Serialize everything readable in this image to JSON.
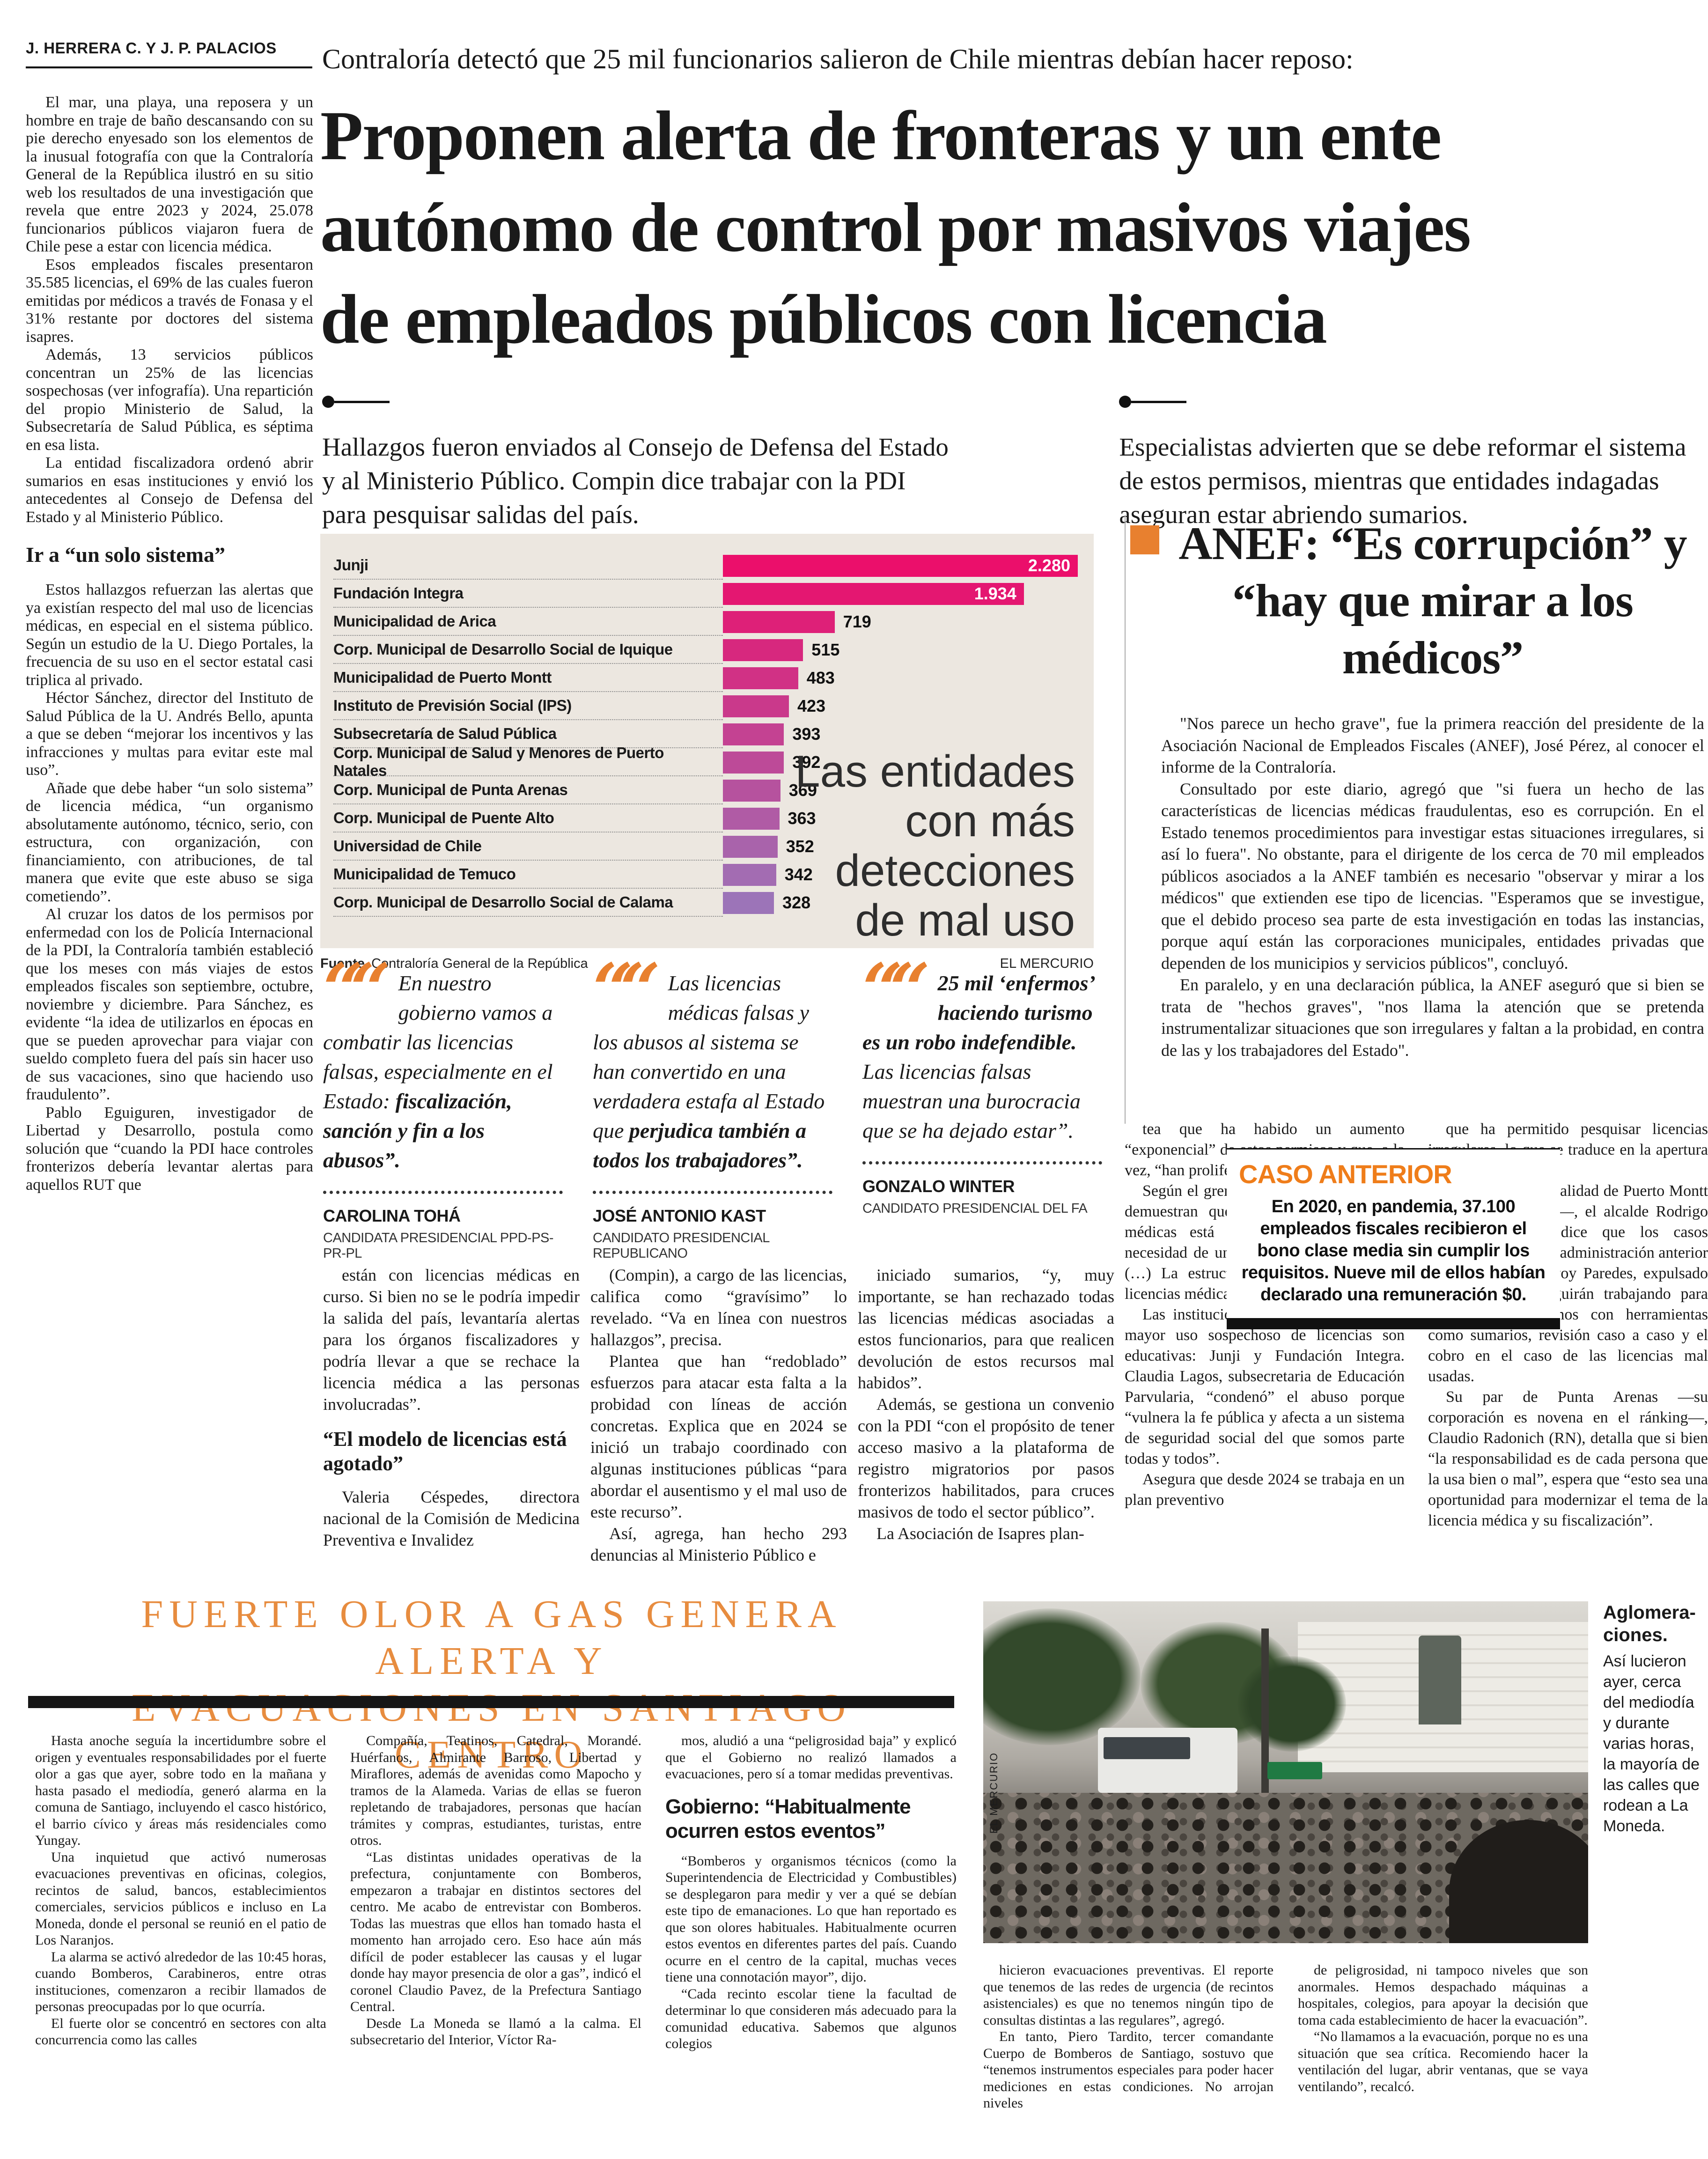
{
  "colors": {
    "accent_orange": "#E8802F",
    "title_orange": "#E78C3F",
    "caso_orange": "#EF7D1A",
    "chart_bg": "#ECE7E0",
    "bar_start": "#EB0F6B",
    "bar_end": "#9C74B8",
    "ink": "#1A1A1A"
  },
  "byline": "J. HERRERA C. Y J. P. PALACIOS",
  "kicker": "Contraloría detectó que 25 mil funcionarios salieron de Chile mientras debían hacer reposo:",
  "headline": "Proponen alerta de fronteras y un ente\nautónomo de control por masivos viajes\nde empleados públicos con licencia",
  "decks": [
    "Hallazgos fueron enviados al Consejo de Defensa del Estado y al Ministerio Público. Compin dice trabajar con la PDI para pesquisar salidas del país.",
    "Especialistas advierten que se debe reformar el sistema de estos permisos, mientras que entidades indagadas aseguran estar abriendo sumarios."
  ],
  "left_col": {
    "paragraphs": [
      "El mar, una playa, una reposera y un hombre en traje de baño descansando con su pie derecho enyesado son los elementos de la inusual fotografía con que la Contraloría General de la República ilustró en su sitio web los resultados de una investigación que revela que entre 2023 y 2024, 25.078 funcionarios públicos viajaron fuera de Chile pese a estar con licencia médica.",
      "Esos empleados fiscales presentaron 35.585 licencias, el 69% de las cuales fueron emitidas por médicos a través de Fonasa y el 31% restante por doctores del sistema isapres.",
      "Además, 13 servicios públicos concentran un 25% de las licencias sospechosas (ver infografía). Una repartición del propio Ministerio de Salud, la Subsecretaría de Salud Pública, es séptima en esa lista.",
      "La entidad fiscalizadora ordenó abrir sumarios en esas instituciones y envió los antecedentes al Consejo de Defensa del Estado y al Ministerio Público."
    ],
    "subhead": "Ir a “un solo sistema”",
    "paragraphs2": [
      "Estos hallazgos refuerzan las alertas que ya existían respecto del mal uso de licencias médicas, en especial en el sistema público. Según un estudio de la U. Diego Portales, la frecuencia de su uso en el sector estatal casi triplica al privado.",
      "Héctor Sánchez, director del Instituto de Salud Pública de la U. Andrés Bello, apunta a que se deben “mejorar los incentivos y las infracciones y multas para evitar este mal uso”.",
      "Añade que debe haber “un solo sistema” de licencia médica, “un organismo absolutamente autónomo, técnico, serio, con estructura, con organización, con financiamiento, con atribuciones, de tal manera que evite que este abuso se siga cometiendo”.",
      "Al cruzar los datos de los permisos por enfermedad con los de Policía Internacional de la PDI, la Contraloría también estableció que los meses con más viajes de estos empleados fiscales son septiembre, octubre, noviembre y diciembre. Para Sánchez, es evidente “la idea de utilizarlos en épocas en que se pueden aprovechar para viajar con sueldo completo fuera del país sin hacer uso de sus vacaciones, sino que haciendo uso fraudulento”.",
      "Pablo Eguiguren, investigador de Libertad y Desarrollo, postula como solución que “cuando la PDI hace controles fronterizos debería levantar alertas para aquellos RUT que"
    ]
  },
  "chart_data": {
    "type": "bar",
    "orientation": "horizontal",
    "title": "Las entidades\ncon más\ndetecciones\nde mal uso",
    "categories": [
      "Junji",
      "Fundación Integra",
      "Municipalidad de Arica",
      "Corp. Municipal de Desarrollo Social de Iquique",
      "Municipalidad de Puerto Montt",
      "Instituto de Previsión Social (IPS)",
      "Subsecretaría de Salud Pública",
      "Corp. Municipal de Salud y Menores de Puerto Natales",
      "Corp. Municipal de Punta Arenas",
      "Corp. Municipal de Puente Alto",
      "Universidad de Chile",
      "Municipalidad de Temuco",
      "Corp. Municipal de Desarrollo Social de Calama"
    ],
    "values": [
      2280,
      1934,
      719,
      515,
      483,
      423,
      393,
      392,
      369,
      363,
      352,
      342,
      328
    ],
    "value_labels": [
      "2.280",
      "1.934",
      "719",
      "515",
      "483",
      "423",
      "393",
      "392",
      "369",
      "363",
      "352",
      "342",
      "328"
    ],
    "xlim": [
      0,
      2280
    ],
    "grid": false,
    "source_label": "Fuente",
    "source": "Contraloría General de la República",
    "credit": "EL MERCURIO"
  },
  "anef": {
    "headline": "ANEF: “Es corrupción” y\n“hay que mirar a los médicos”",
    "paragraphs": [
      "\"Nos parece un hecho grave\", fue la primera reacción del presidente de la Asociación Nacional de Empleados Fiscales (ANEF), José Pérez, al conocer el informe de la Contraloría.",
      "Consultado por este diario, agregó que \"si fuera un hecho de las características de licencias médicas fraudulentas, eso es corrupción. En el Estado tenemos procedimientos para investigar estas situaciones irregulares, si así lo fuera\". No obstante, para el dirigente de los cerca de 70 mil empleados públicos asociados a la ANEF también es necesario \"observar y mirar a los médicos\" que extienden ese tipo de licencias. \"Esperamos que se investigue, que el debido proceso sea parte de esta investigación en todas las instancias, porque aquí están las corporaciones municipales, entidades privadas que dependen de los municipios y servicios públicos\", concluyó.",
      "En paralelo, y en una declaración pública, la ANEF aseguró que si bien se trata de \"hechos graves\", \"nos llama la atención que se pretenda instrumentalizar situaciones que son irregulares y faltan a la probidad, en contra de las y los trabajadores del Estado\"."
    ]
  },
  "quotes": [
    {
      "pre": "En nuestro gobierno vamos a combatir las licencias falsas, especialmente en el Estado: ",
      "bold": "fiscalización, sanción y fin a los abusos”.",
      "post": "",
      "name": "CAROLINA TOHÁ",
      "role": "CANDIDATA PRESIDENCIAL PPD-PS-PR-PL"
    },
    {
      "pre": "Las licencias médicas falsas y los abusos al sistema se han convertido en una verdadera estafa al Estado que ",
      "bold": "perjudica también a todos los trabajadores”.",
      "post": "",
      "name": "JOSÉ ANTONIO KAST",
      "role": "CANDIDATO PRESIDENCIAL REPUBLICANO"
    },
    {
      "pre": "",
      "bold": "25 mil ‘enfermos’ haciendo turismo es un robo indefendible.",
      "post": " Las licencias falsas muestran una burocracia que se ha dejado estar”.",
      "name": "GONZALO WINTER",
      "role": "CANDIDATO PRESIDENCIAL DEL FA"
    }
  ],
  "mid_cols": {
    "col1_p1": "están con licencias médicas en curso. Si bien no se le podría impedir la salida del país, levantaría alertas para los órganos fiscalizadores y podría llevar a que se rechace la licencia médica a las personas involucradas”.",
    "col1_subhead": "“El modelo de licencias está agotado”",
    "col1_p2": "Valeria Céspedes, directora nacional de la Comisión de Medicina Preventiva e Invalidez",
    "col2": [
      "(Compin), a cargo de las licencias, califica como “gravísimo” lo revelado. “Va en línea con nuestros hallazgos”, precisa.",
      "Plantea que han “redoblado” esfuerzos para atacar esta falta a la probidad con líneas de acción concretas. Explica que en 2024 se inició un trabajo coordinado con algunas instituciones públicas “para abordar el ausentismo y el mal uso de este recurso”.",
      "Así, agrega, han hecho 293 denuncias al Ministerio Público e"
    ],
    "col3": [
      "iniciado sumarios, “y, muy importante, se han rechazado todas las licencias médicas asociadas a estos funcionarios, para que realicen devolución de estos recursos mal habidos”.",
      "Además, se gestiona un convenio con la PDI “con el propósito de tener acceso masivo a la plataforma de registro migratorios por pasos fronterizos habilitados, para cruces masivos de todo el sector público”.",
      "La Asociación de Isapres plan-"
    ]
  },
  "right_cols": {
    "col1": [
      "tea que ha habido un aumento “exponencial” de estos permisos y que, a la vez, “han proliferado los casos de fraude”.",
      "Según el gremio, “los hallazgos también demuestran que el modelo de licencias médicas está agotado y evidencian la necesidad de una completa transformación (…) La estructura administrativa de las licencias médicas no está siendo eficaz”.",
      "Las instituciones donde se constató un mayor uso sospechoso de licencias son educativas: Junji y Fundación Integra. Claudia Lagos, subsecretaria de Educación Parvularia, “condenó” el abuso porque “vulnera la fe pública y afecta a un sistema de seguridad social del que somos parte todas y todos”.",
      "Asegura que desde 2024 se trabaja en un plan preventivo"
    ],
    "col2": [
      "que ha permitido pesquisar licencias irregulares, lo que se traduce en la apertura de sumarios.",
      "Desde la Municipalidad de Puerto Montt —quinta en la lista—, el alcalde Rodrigo Wainraihgt (RN) dice que los casos detectados son de la administración anterior (del destituido Gervoy Paredes, expulsado del PS) y que seguirán trabajando para esclarecer los hechos con herramientas como sumarios, revisión caso a caso y el cobro en el caso de las licencias mal usadas.",
      "Su par de Punta Arenas —su corporación es novena en el ránking—, Claudio Radonich (RN), detalla que si bien “la responsabilidad es de cada persona que la usa bien o mal”, espera que “esto sea una oportunidad para modernizar el tema de la licencia médica y su fiscalización”."
    ]
  },
  "caso": {
    "title": "CASO ANTERIOR",
    "text": "En 2020, en pandemia, 37.100 empleados fiscales recibieron el bono clase media sin cumplir los requisitos. Nueve mil de ellos habían declarado una remuneración $0."
  },
  "gas": {
    "title": "FUERTE OLOR A GAS GENERA ALERTA Y\nEVACUACIONES EN SANTIAGO CENTRO",
    "col1": [
      "Hasta anoche seguía la incertidumbre sobre el origen y eventuales responsabilidades por el fuerte olor a gas que ayer, sobre todo en la mañana y hasta pasado el mediodía, generó alarma en la comuna de Santiago, incluyendo el casco histórico, el barrio cívico y áreas más residenciales como Yungay.",
      "Una inquietud que activó numerosas evacuaciones preventivas en oficinas, colegios, recintos de salud, bancos, establecimientos comerciales, servicios públicos e incluso en La Moneda, donde el personal se reunió en el patio de Los Naranjos.",
      "La alarma se activó alrededor de las 10:45 horas, cuando Bomberos, Carabineros, entre otras instituciones, comenzaron a recibir llamados de personas preocupadas por lo que ocurría.",
      "El fuerte olor se concentró en sectores con alta concurrencia como las calles"
    ],
    "col2": [
      "Compañía, Teatinos, Catedral, Morandé. Huérfanos, Almirante Barroso, Libertad y Miraflores, además de avenidas como Mapocho y tramos de la Alameda. Varias de ellas se fueron repletando de trabajadores, personas que hacían trámites y compras, estudiantes, turistas, entre otros.",
      "“Las distintas unidades operativas de la prefectura, conjuntamente con Bomberos, empezaron a trabajar en distintos sectores del centro. Me acabo de entrevistar con Bomberos. Todas las muestras que ellos han tomado hasta el momento han arrojado cero. Eso hace aún más difícil de poder establecer las causas y el lugar donde hay mayor presencia de olor a gas”, indicó el coronel Claudio Pavez, de la Prefectura Santiago Central.",
      "Desde La Moneda se llamó a la calma. El subsecretario del Interior, Víctor Ra-"
    ],
    "col3_pre": "mos, aludió a una “peligrosidad baja” y explicó que el Gobierno no realizó llamados a evacuaciones, pero sí a tomar medidas preventivas.",
    "col3_subhead": "Gobierno: “Habitualmente ocurren estos eventos”",
    "col3_post": [
      "“Bomberos y organismos técnicos (como la Superintendencia de Electricidad y Combustibles) se desplegaron para medir y ver a qué se debían este tipo de emanaciones. Lo que han reportado es que son olores habituales. Habitualmente ocurren estos eventos en diferentes partes del país. Cuando ocurre en el centro de la capital, muchas veces tiene una connotación mayor”, dijo.",
      "“Cada recinto escolar tiene la facultad de determinar lo que consideren más adecuado para la comunidad educativa. Sabemos que algunos colegios"
    ],
    "col4": [
      "hicieron evacuaciones preventivas. El reporte que tenemos de las redes de urgencia (de recintos asistenciales) es que no tenemos ningún tipo de consultas distintas a las regulares”, agregó.",
      "En tanto, Piero Tardito, tercer comandante Cuerpo de Bomberos de Santiago, sostuvo que “tenemos instrumentos especiales para poder hacer mediciones en estas condiciones. No arrojan niveles"
    ],
    "col5": [
      "de peligrosidad, ni tampoco niveles que son anormales. Hemos despachado máquinas a hospitales, colegios, para apoyar la decisión que toma cada establecimiento de hacer la evacuación”.",
      "“No llamamos a la evacuación, porque no es una situación que sea crítica. Recomiendo hacer la ventilación del lugar, abrir ventanas, que se vaya ventilando”, recalcó."
    ]
  },
  "photo": {
    "credit": "EL MERCURIO",
    "caption_title": "Aglomera-ciones.",
    "caption": "Así lucieron ayer, cerca del mediodía y durante varias horas, la mayoría de las calles que rodean a La Moneda."
  }
}
